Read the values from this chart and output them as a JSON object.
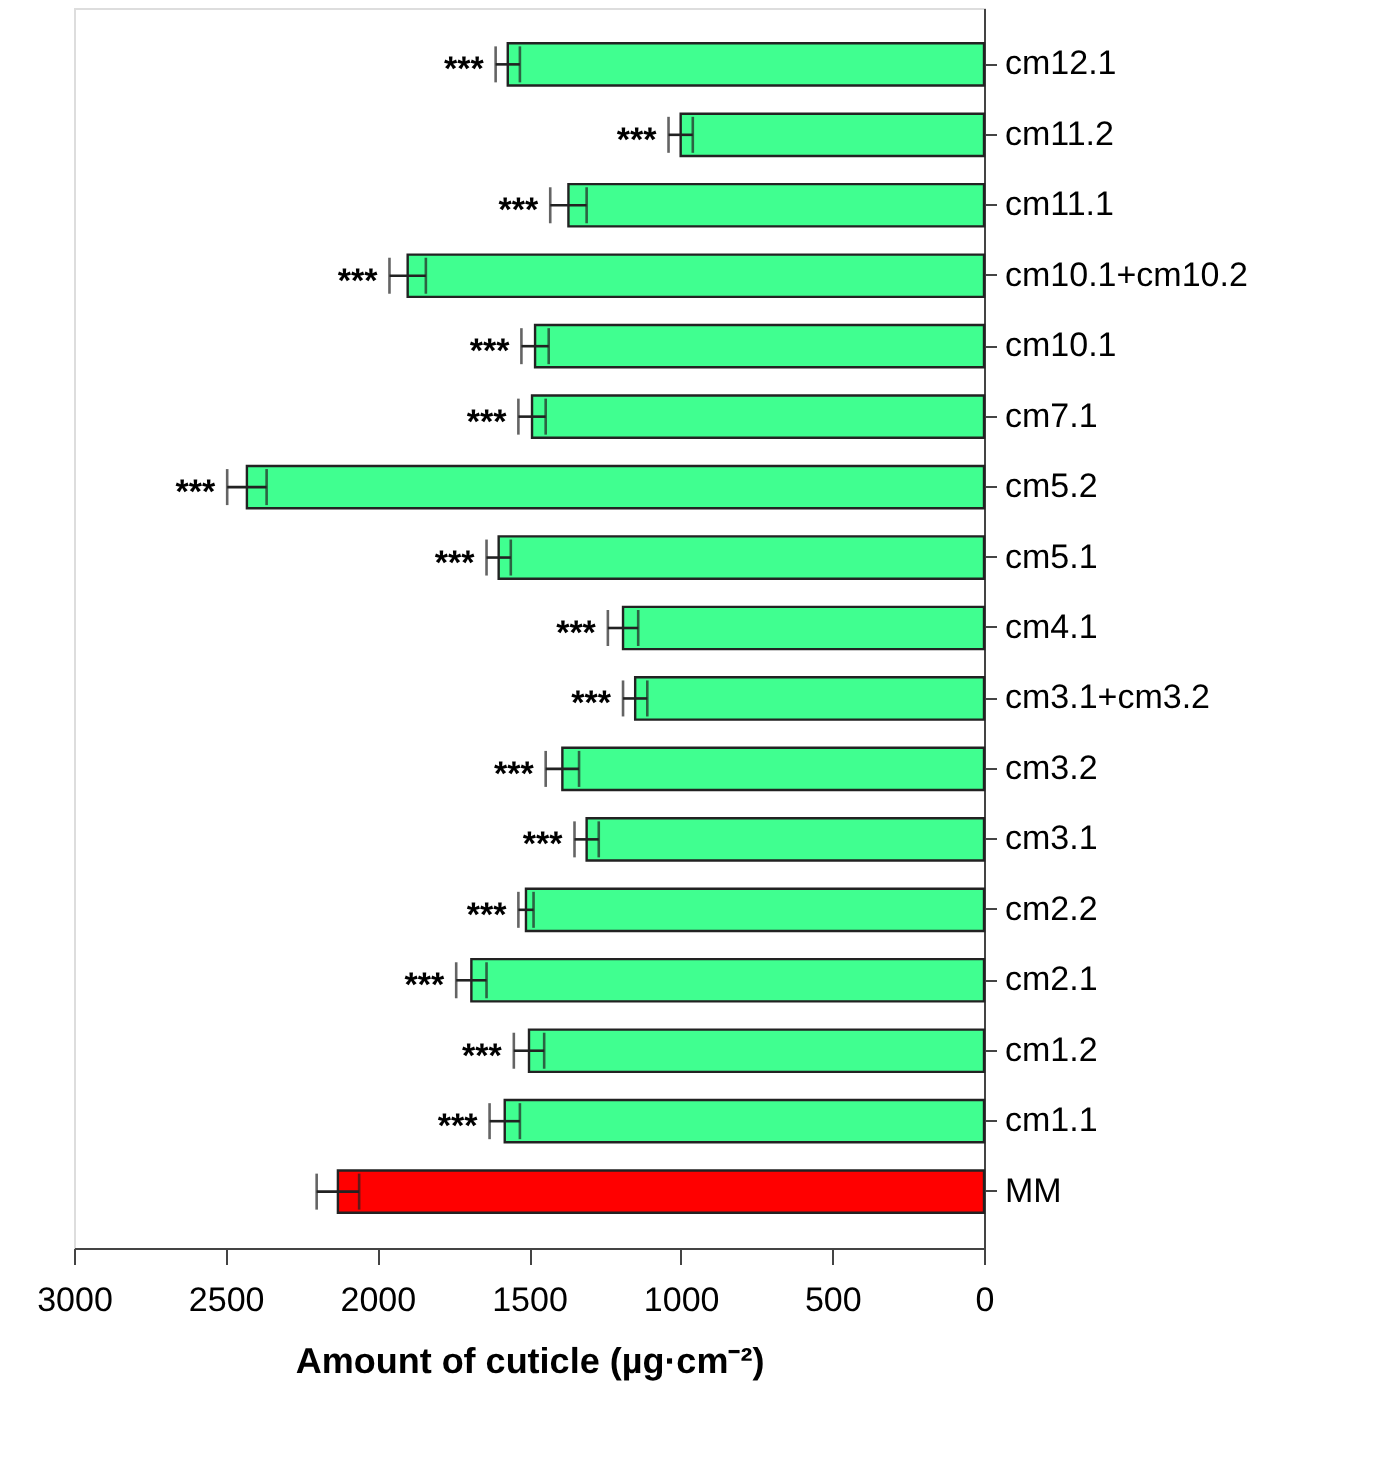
{
  "chart_data": {
    "type": "bar",
    "orientation": "horizontal",
    "xlabel": "Amount of cuticle (µg·cm⁻²)",
    "categories": [
      "cm12.1",
      "cm11.2",
      "cm11.1",
      "cm10.1+cm10.2",
      "cm10.1",
      "cm7.1",
      "cm5.2",
      "cm5.1",
      "cm4.1",
      "cm3.1+cm3.2",
      "cm3.2",
      "cm3.1",
      "cm2.2",
      "cm2.1",
      "cm1.2",
      "cm1.1",
      "MM"
    ],
    "values": [
      1570,
      1000,
      1370,
      1900,
      1480,
      1490,
      2430,
      1600,
      1190,
      1150,
      1390,
      1310,
      1510,
      1690,
      1500,
      1580,
      2130
    ],
    "errors": [
      40,
      40,
      60,
      60,
      45,
      45,
      65,
      40,
      50,
      40,
      55,
      40,
      25,
      50,
      50,
      50,
      70
    ],
    "colors": [
      "#40ff90",
      "#40ff90",
      "#40ff90",
      "#40ff90",
      "#40ff90",
      "#40ff90",
      "#40ff90",
      "#40ff90",
      "#40ff90",
      "#40ff90",
      "#40ff90",
      "#40ff90",
      "#40ff90",
      "#40ff90",
      "#40ff90",
      "#40ff90",
      "#ff0000"
    ],
    "xlim": [
      3000,
      0
    ],
    "xticks": [
      3000,
      2500,
      2000,
      1500,
      1000,
      500,
      0
    ],
    "grid": false,
    "annotations": [
      {
        "text": "***",
        "x": 1610,
        "y": "cm12.1"
      },
      {
        "text": "***",
        "x": 1040,
        "y": "cm11.2"
      },
      {
        "text": "***",
        "x": 1430,
        "y": "cm11.1"
      },
      {
        "text": "***",
        "x": 1960,
        "y": "cm10.1+cm10.2"
      },
      {
        "text": "***",
        "x": 1525,
        "y": "cm10.1"
      },
      {
        "text": "***",
        "x": 1535,
        "y": "cm7.1"
      },
      {
        "text": "***",
        "x": 2495,
        "y": "cm5.2"
      },
      {
        "text": "***",
        "x": 1640,
        "y": "cm5.1"
      },
      {
        "text": "***",
        "x": 1240,
        "y": "cm4.1"
      },
      {
        "text": "***",
        "x": 1190,
        "y": "cm3.1+cm3.2"
      },
      {
        "text": "***",
        "x": 1445,
        "y": "cm3.2"
      },
      {
        "text": "***",
        "x": 1350,
        "y": "cm3.1"
      },
      {
        "text": "***",
        "x": 1535,
        "y": "cm2.2"
      },
      {
        "text": "***",
        "x": 1740,
        "y": "cm2.1"
      },
      {
        "text": "***",
        "x": 1550,
        "y": "cm1.2"
      },
      {
        "text": "***",
        "x": 1630,
        "y": "cm1.1"
      }
    ]
  }
}
